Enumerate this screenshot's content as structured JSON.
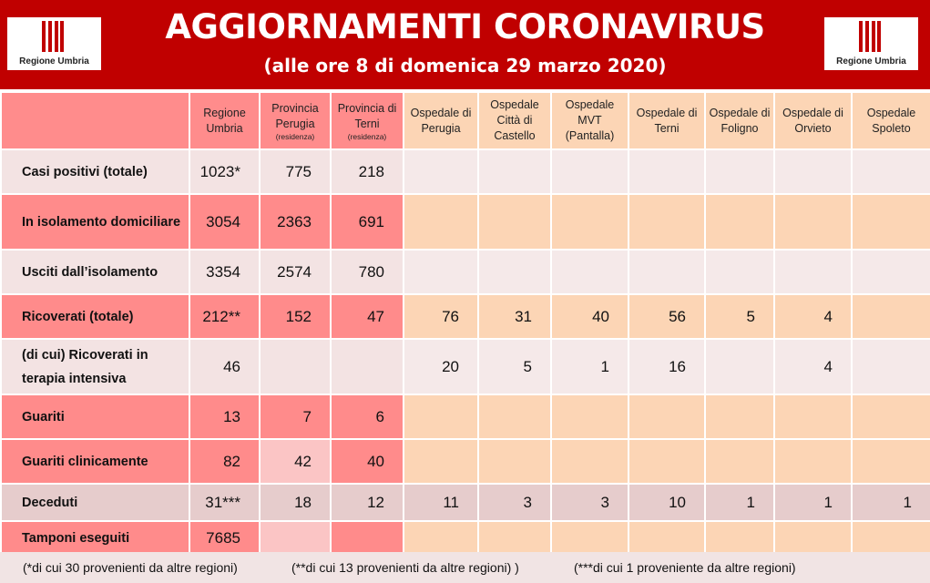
{
  "header": {
    "title": "AGGIORNAMENTI CORONAVIRUS",
    "subtitle": "(alle ore 8 di domenica 29 marzo 2020)",
    "logo_text": "Regione Umbria"
  },
  "columns": [
    {
      "label": "Regione Umbria",
      "note": ""
    },
    {
      "label": "Provincia Perugia",
      "note": "(residenza)"
    },
    {
      "label": "Provincia di Terni",
      "note": "(residenza)"
    },
    {
      "label": "Ospedale di Perugia",
      "note": ""
    },
    {
      "label": "Ospedale Città di Castello",
      "note": ""
    },
    {
      "label": "Ospedale MVT (Pantalla)",
      "note": ""
    },
    {
      "label": "Ospedale di Terni",
      "note": ""
    },
    {
      "label": "Ospedale di Foligno",
      "note": ""
    },
    {
      "label": "Ospedale di Orvieto",
      "note": ""
    },
    {
      "label": "Ospedale Spoleto",
      "note": ""
    }
  ],
  "rows": [
    {
      "label": "Casi positivi (totale)",
      "values": [
        "1023*",
        "775",
        "218",
        "",
        "",
        "",
        "",
        "",
        "",
        ""
      ]
    },
    {
      "label": "In isolamento domiciliare",
      "values": [
        "3054",
        "2363",
        "691",
        "",
        "",
        "",
        "",
        "",
        "",
        ""
      ]
    },
    {
      "label": "Usciti dall’isolamento",
      "values": [
        "3354",
        "2574",
        "780",
        "",
        "",
        "",
        "",
        "",
        "",
        ""
      ]
    },
    {
      "label": "Ricoverati (totale)",
      "values": [
        "212**",
        "152",
        "47",
        "76",
        "31",
        "40",
        "56",
        "5",
        "4",
        ""
      ]
    },
    {
      "label": "(di cui) Ricoverati in terapia intensiva",
      "values": [
        "46",
        "",
        "",
        "20",
        "5",
        "1",
        "16",
        "",
        "4",
        ""
      ]
    },
    {
      "label": "Guariti",
      "values": [
        "13",
        "7",
        "6",
        "",
        "",
        "",
        "",
        "",
        "",
        ""
      ]
    },
    {
      "label": "Guariti clinicamente",
      "values": [
        "82",
        "42",
        "40",
        "",
        "",
        "",
        "",
        "",
        "",
        ""
      ]
    },
    {
      "label": "Deceduti",
      "values": [
        "31***",
        "18",
        "12",
        "11",
        "3",
        "3",
        "10",
        "1",
        "1",
        "1"
      ]
    },
    {
      "label": "Tamponi eseguiti",
      "values": [
        "7685",
        "",
        "",
        "",
        "",
        "",
        "",
        "",
        "",
        ""
      ]
    }
  ],
  "footnotes": [
    "(*di cui 30 provenienti da altre regioni)",
    "(**di cui 13 provenienti da altre regioni) )",
    "(***di  cui 1 proveniente da altre regioni)"
  ],
  "colors": {
    "header_red": "#c00000",
    "pink": "#ff8b8b",
    "peach": "#fcd5b5",
    "light": "#f3e3e3"
  }
}
